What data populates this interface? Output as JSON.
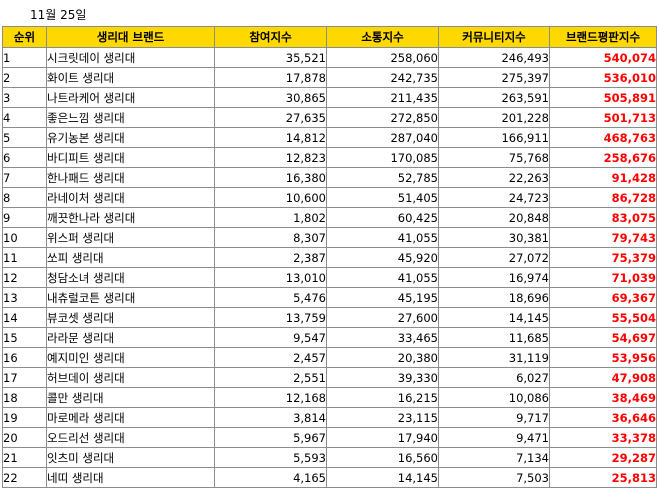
{
  "date_label": "11월 25일",
  "headers": {
    "rank": "순위",
    "brand": "생리대 브랜드",
    "participation": "참여지수",
    "communication": "소통지수",
    "community": "커뮤니티지수",
    "reputation": "브랜드평판지수"
  },
  "colors": {
    "header_bg": "#ffd800",
    "score_text": "#ff0000",
    "border": "#8c8c8c"
  },
  "rows": [
    {
      "rank": "1",
      "brand": "시크릿데이 생리대",
      "participation": "35,521",
      "communication": "258,060",
      "community": "246,493",
      "reputation": "540,074"
    },
    {
      "rank": "2",
      "brand": "화이트 생리대",
      "participation": "17,878",
      "communication": "242,735",
      "community": "275,397",
      "reputation": "536,010"
    },
    {
      "rank": "3",
      "brand": "나트라케어 생리대",
      "participation": "30,865",
      "communication": "211,435",
      "community": "263,591",
      "reputation": "505,891"
    },
    {
      "rank": "4",
      "brand": "좋은느낌 생리대",
      "participation": "27,635",
      "communication": "272,850",
      "community": "201,228",
      "reputation": "501,713"
    },
    {
      "rank": "5",
      "brand": "유기농본 생리대",
      "participation": "14,812",
      "communication": "287,040",
      "community": "166,911",
      "reputation": "468,763"
    },
    {
      "rank": "6",
      "brand": "바디피트 생리대",
      "participation": "12,823",
      "communication": "170,085",
      "community": "75,768",
      "reputation": "258,676"
    },
    {
      "rank": "7",
      "brand": "한나패드 생리대",
      "participation": "16,380",
      "communication": "52,785",
      "community": "22,263",
      "reputation": "91,428"
    },
    {
      "rank": "8",
      "brand": "라네이처 생리대",
      "participation": "10,600",
      "communication": "51,405",
      "community": "24,723",
      "reputation": "86,728"
    },
    {
      "rank": "9",
      "brand": "깨끗한나라 생리대",
      "participation": "1,802",
      "communication": "60,425",
      "community": "20,848",
      "reputation": "83,075"
    },
    {
      "rank": "10",
      "brand": "위스퍼 생리대",
      "participation": "8,307",
      "communication": "41,055",
      "community": "30,381",
      "reputation": "79,743"
    },
    {
      "rank": "11",
      "brand": "쏘피 생리대",
      "participation": "2,387",
      "communication": "45,920",
      "community": "27,072",
      "reputation": "75,379"
    },
    {
      "rank": "12",
      "brand": "청담소녀 생리대",
      "participation": "13,010",
      "communication": "41,055",
      "community": "16,974",
      "reputation": "71,039"
    },
    {
      "rank": "13",
      "brand": "내츄럴코튼 생리대",
      "participation": "5,476",
      "communication": "45,195",
      "community": "18,696",
      "reputation": "69,367"
    },
    {
      "rank": "14",
      "brand": "뷰코셋 생리대",
      "participation": "13,759",
      "communication": "27,600",
      "community": "14,145",
      "reputation": "55,504"
    },
    {
      "rank": "15",
      "brand": "라라문 생리대",
      "participation": "9,547",
      "communication": "33,465",
      "community": "11,685",
      "reputation": "54,697"
    },
    {
      "rank": "16",
      "brand": "예지미인 생리대",
      "participation": "2,457",
      "communication": "20,380",
      "community": "31,119",
      "reputation": "53,956"
    },
    {
      "rank": "17",
      "brand": "허브데이 생리대",
      "participation": "2,551",
      "communication": "39,330",
      "community": "6,027",
      "reputation": "47,908"
    },
    {
      "rank": "18",
      "brand": "콜만 생리대",
      "participation": "12,168",
      "communication": "16,215",
      "community": "10,086",
      "reputation": "38,469"
    },
    {
      "rank": "19",
      "brand": "마로메라 생리대",
      "participation": "3,814",
      "communication": "23,115",
      "community": "9,717",
      "reputation": "36,646"
    },
    {
      "rank": "20",
      "brand": "오드리선 생리대",
      "participation": "5,967",
      "communication": "17,940",
      "community": "9,471",
      "reputation": "33,378"
    },
    {
      "rank": "21",
      "brand": "잇츠미 생리대",
      "participation": "5,593",
      "communication": "16,560",
      "community": "7,134",
      "reputation": "29,287"
    },
    {
      "rank": "22",
      "brand": "네띠 생리대",
      "participation": "4,165",
      "communication": "14,145",
      "community": "7,503",
      "reputation": "25,813"
    }
  ]
}
